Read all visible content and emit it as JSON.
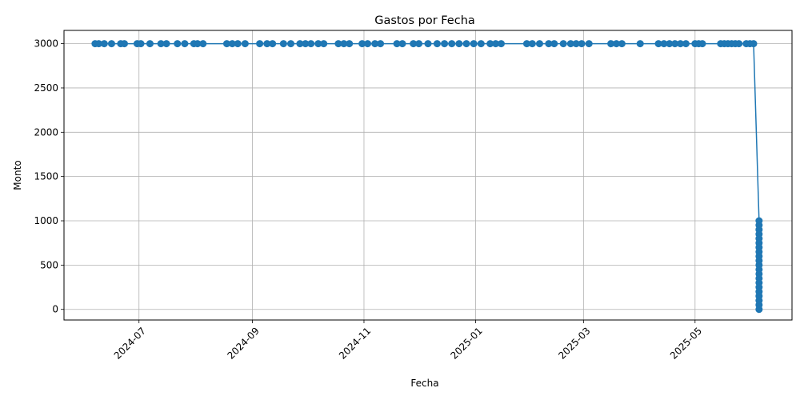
{
  "chart_data": {
    "type": "line",
    "title": "Gastos por Fecha",
    "xlabel": "Fecha",
    "ylabel": "Monto",
    "x_axis_type": "date",
    "xlim": [
      "2024-05-21",
      "2025-06-23"
    ],
    "ylim": [
      -120,
      3150
    ],
    "grid": true,
    "color": "#1f77b4",
    "marker": "circle",
    "x_ticks": [
      "2024-07-01",
      "2024-09-01",
      "2024-11-01",
      "2025-01-01",
      "2025-03-01",
      "2025-05-01"
    ],
    "x_tick_labels": [
      "2024-07",
      "2024-09",
      "2024-11",
      "2025-01",
      "2025-03",
      "2025-05"
    ],
    "y_ticks": [
      0,
      500,
      1000,
      1500,
      2000,
      2500,
      3000
    ],
    "y_tick_labels": [
      "0",
      "500",
      "1000",
      "1500",
      "2000",
      "2500",
      "3000"
    ],
    "series": [
      {
        "points": [
          {
            "x": "2024-06-07",
            "y": 3000
          },
          {
            "x": "2024-06-09",
            "y": 3000
          },
          {
            "x": "2024-06-12",
            "y": 3000
          },
          {
            "x": "2024-06-16",
            "y": 3000
          },
          {
            "x": "2024-06-21",
            "y": 3000
          },
          {
            "x": "2024-06-23",
            "y": 3000
          },
          {
            "x": "2024-06-30",
            "y": 3000
          },
          {
            "x": "2024-07-02",
            "y": 3000
          },
          {
            "x": "2024-07-07",
            "y": 3000
          },
          {
            "x": "2024-07-13",
            "y": 3000
          },
          {
            "x": "2024-07-16",
            "y": 3000
          },
          {
            "x": "2024-07-22",
            "y": 3000
          },
          {
            "x": "2024-07-26",
            "y": 3000
          },
          {
            "x": "2024-07-31",
            "y": 3000
          },
          {
            "x": "2024-08-02",
            "y": 3000
          },
          {
            "x": "2024-08-05",
            "y": 3000
          },
          {
            "x": "2024-08-18",
            "y": 3000
          },
          {
            "x": "2024-08-21",
            "y": 3000
          },
          {
            "x": "2024-08-24",
            "y": 3000
          },
          {
            "x": "2024-08-28",
            "y": 3000
          },
          {
            "x": "2024-09-05",
            "y": 3000
          },
          {
            "x": "2024-09-09",
            "y": 3000
          },
          {
            "x": "2024-09-12",
            "y": 3000
          },
          {
            "x": "2024-09-18",
            "y": 3000
          },
          {
            "x": "2024-09-22",
            "y": 3000
          },
          {
            "x": "2024-09-27",
            "y": 3000
          },
          {
            "x": "2024-09-30",
            "y": 3000
          },
          {
            "x": "2024-10-03",
            "y": 3000
          },
          {
            "x": "2024-10-07",
            "y": 3000
          },
          {
            "x": "2024-10-10",
            "y": 3000
          },
          {
            "x": "2024-10-18",
            "y": 3000
          },
          {
            "x": "2024-10-21",
            "y": 3000
          },
          {
            "x": "2024-10-24",
            "y": 3000
          },
          {
            "x": "2024-10-31",
            "y": 3000
          },
          {
            "x": "2024-11-03",
            "y": 3000
          },
          {
            "x": "2024-11-07",
            "y": 3000
          },
          {
            "x": "2024-11-10",
            "y": 3000
          },
          {
            "x": "2024-11-19",
            "y": 3000
          },
          {
            "x": "2024-11-22",
            "y": 3000
          },
          {
            "x": "2024-11-28",
            "y": 3000
          },
          {
            "x": "2024-12-01",
            "y": 3000
          },
          {
            "x": "2024-12-06",
            "y": 3000
          },
          {
            "x": "2024-12-11",
            "y": 3000
          },
          {
            "x": "2024-12-15",
            "y": 3000
          },
          {
            "x": "2024-12-19",
            "y": 3000
          },
          {
            "x": "2024-12-23",
            "y": 3000
          },
          {
            "x": "2024-12-27",
            "y": 3000
          },
          {
            "x": "2024-12-31",
            "y": 3000
          },
          {
            "x": "2025-01-04",
            "y": 3000
          },
          {
            "x": "2025-01-09",
            "y": 3000
          },
          {
            "x": "2025-01-12",
            "y": 3000
          },
          {
            "x": "2025-01-15",
            "y": 3000
          },
          {
            "x": "2025-01-29",
            "y": 3000
          },
          {
            "x": "2025-02-01",
            "y": 3000
          },
          {
            "x": "2025-02-05",
            "y": 3000
          },
          {
            "x": "2025-02-10",
            "y": 3000
          },
          {
            "x": "2025-02-13",
            "y": 3000
          },
          {
            "x": "2025-02-18",
            "y": 3000
          },
          {
            "x": "2025-02-22",
            "y": 3000
          },
          {
            "x": "2025-02-25",
            "y": 3000
          },
          {
            "x": "2025-02-28",
            "y": 3000
          },
          {
            "x": "2025-03-04",
            "y": 3000
          },
          {
            "x": "2025-03-16",
            "y": 3000
          },
          {
            "x": "2025-03-19",
            "y": 3000
          },
          {
            "x": "2025-03-22",
            "y": 3000
          },
          {
            "x": "2025-04-01",
            "y": 3000
          },
          {
            "x": "2025-04-11",
            "y": 3000
          },
          {
            "x": "2025-04-14",
            "y": 3000
          },
          {
            "x": "2025-04-17",
            "y": 3000
          },
          {
            "x": "2025-04-20",
            "y": 3000
          },
          {
            "x": "2025-04-23",
            "y": 3000
          },
          {
            "x": "2025-04-26",
            "y": 3000
          },
          {
            "x": "2025-05-01",
            "y": 3000
          },
          {
            "x": "2025-05-03",
            "y": 3000
          },
          {
            "x": "2025-05-05",
            "y": 3000
          },
          {
            "x": "2025-05-15",
            "y": 3000
          },
          {
            "x": "2025-05-17",
            "y": 3000
          },
          {
            "x": "2025-05-19",
            "y": 3000
          },
          {
            "x": "2025-05-21",
            "y": 3000
          },
          {
            "x": "2025-05-23",
            "y": 3000
          },
          {
            "x": "2025-05-25",
            "y": 3000
          },
          {
            "x": "2025-05-29",
            "y": 3000
          },
          {
            "x": "2025-05-31",
            "y": 3000
          },
          {
            "x": "2025-06-02",
            "y": 3000
          },
          {
            "x": "2025-06-05",
            "y": 1000
          },
          {
            "x": "2025-06-05",
            "y": 950
          },
          {
            "x": "2025-06-05",
            "y": 900
          },
          {
            "x": "2025-06-05",
            "y": 850
          },
          {
            "x": "2025-06-05",
            "y": 800
          },
          {
            "x": "2025-06-05",
            "y": 750
          },
          {
            "x": "2025-06-05",
            "y": 700
          },
          {
            "x": "2025-06-05",
            "y": 650
          },
          {
            "x": "2025-06-05",
            "y": 600
          },
          {
            "x": "2025-06-05",
            "y": 550
          },
          {
            "x": "2025-06-05",
            "y": 500
          },
          {
            "x": "2025-06-05",
            "y": 450
          },
          {
            "x": "2025-06-05",
            "y": 400
          },
          {
            "x": "2025-06-05",
            "y": 350
          },
          {
            "x": "2025-06-05",
            "y": 300
          },
          {
            "x": "2025-06-05",
            "y": 250
          },
          {
            "x": "2025-06-05",
            "y": 200
          },
          {
            "x": "2025-06-05",
            "y": 150
          },
          {
            "x": "2025-06-05",
            "y": 100
          },
          {
            "x": "2025-06-05",
            "y": 50
          },
          {
            "x": "2025-06-05",
            "y": 0
          }
        ]
      }
    ]
  }
}
